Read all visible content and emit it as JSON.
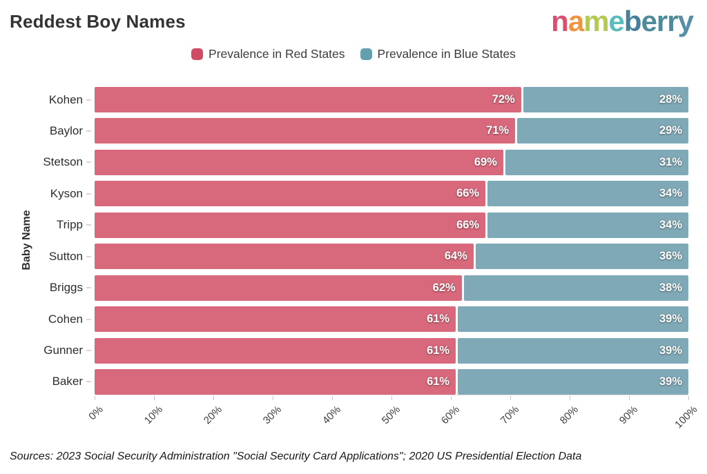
{
  "header": {
    "title": "Reddest Boy Names",
    "logo_text": "nameberry",
    "logo_letters": [
      {
        "ch": "n",
        "color": "#d94f70"
      },
      {
        "ch": "a",
        "color": "#f0953d"
      },
      {
        "ch": "m",
        "color": "#b3c952"
      },
      {
        "ch": "e",
        "color": "#5bbcbd"
      },
      {
        "ch": "b",
        "color": "#44809c"
      },
      {
        "ch": "e",
        "color": "#4f8a9b"
      },
      {
        "ch": "r",
        "color": "#4f8a9b"
      },
      {
        "ch": "r",
        "color": "#4f8a9b"
      },
      {
        "ch": "y",
        "color": "#568fa6"
      }
    ]
  },
  "legend": [
    {
      "label": "Prevalence in Red States",
      "color": "#cf4a63"
    },
    {
      "label": "Prevalence in Blue States",
      "color": "#639fae"
    }
  ],
  "chart_data": {
    "type": "bar",
    "orientation": "horizontal",
    "stacked": true,
    "title": "Reddest Boy Names",
    "ylabel": "Baby Name",
    "xlabel": "",
    "categories": [
      "Kohen",
      "Baylor",
      "Stetson",
      "Kyson",
      "Tripp",
      "Sutton",
      "Briggs",
      "Cohen",
      "Gunner",
      "Baker"
    ],
    "series": [
      {
        "name": "Prevalence in Red States",
        "color": "#d8687b",
        "values": [
          72,
          71,
          69,
          66,
          66,
          64,
          62,
          61,
          61,
          61
        ]
      },
      {
        "name": "Prevalence in Blue States",
        "color": "#7fa9b6",
        "values": [
          28,
          29,
          31,
          34,
          34,
          36,
          38,
          39,
          39,
          39
        ]
      }
    ],
    "value_label_suffix": "%",
    "xlim": [
      0,
      100
    ],
    "x_ticks": [
      "0%",
      "10%",
      "20%",
      "30%",
      "40%",
      "50%",
      "60%",
      "70%",
      "80%",
      "90%",
      "100%"
    ],
    "x_tick_positions": [
      0,
      10,
      20,
      30,
      40,
      50,
      60,
      70,
      80,
      90,
      100
    ],
    "grid": false,
    "legend_position": "top-center"
  },
  "footer": {
    "source": "Sources: 2023 Social Security Administration \"Social Security Card Applications\"; 2020 US Presidential Election Data"
  }
}
